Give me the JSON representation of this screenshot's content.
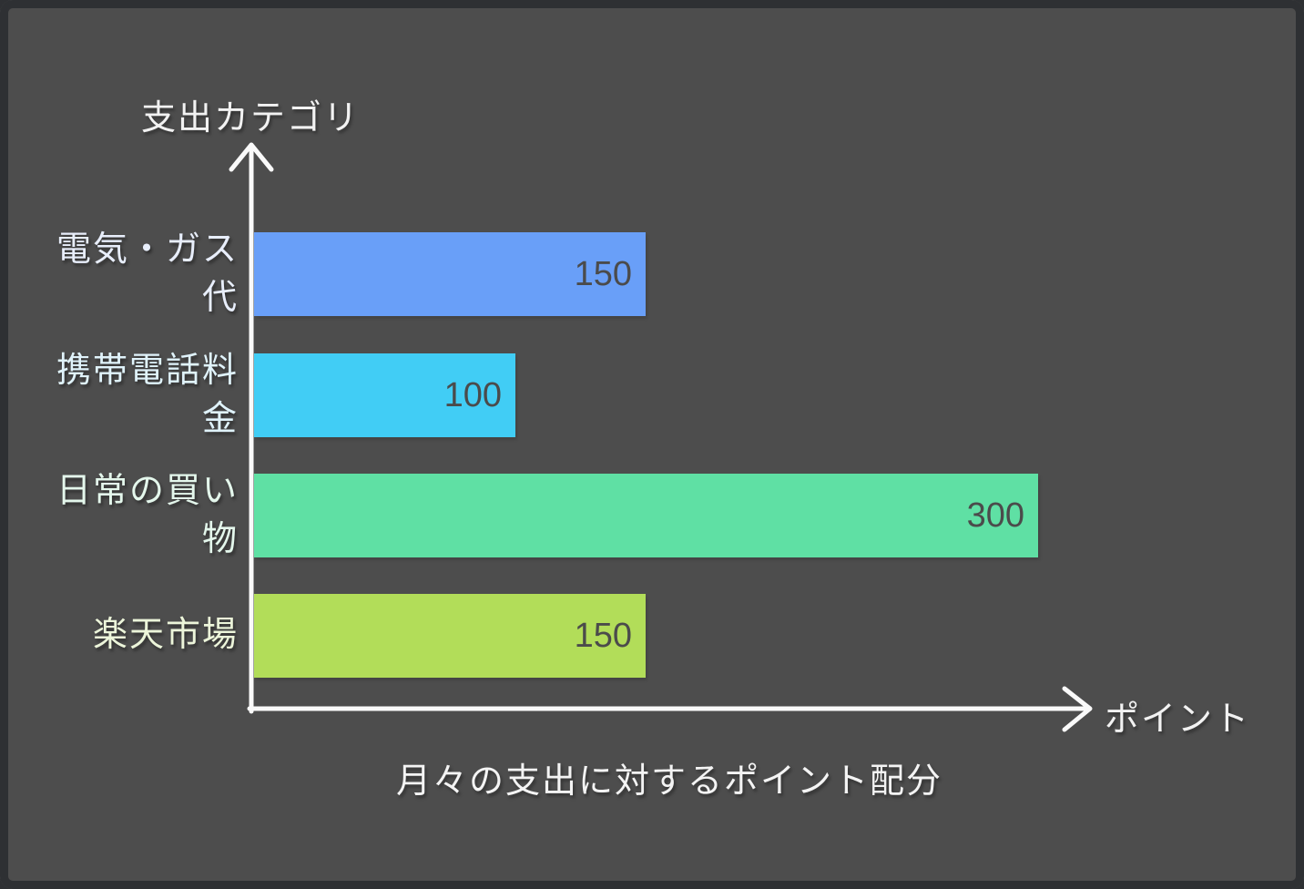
{
  "chart_data": {
    "type": "bar",
    "orientation": "horizontal",
    "title": "月々の支出に対するポイント配分",
    "xlabel": "ポイント",
    "ylabel": "支出カテゴリ",
    "categories": [
      "電気・ガス代",
      "携帯電話料金",
      "日常の買い物",
      "楽天市場"
    ],
    "display_labels": [
      "電気・ガス\n代",
      "携帯電話料\n金",
      "日常の買い\n物",
      "楽天市場"
    ],
    "values": [
      150,
      100,
      300,
      150
    ],
    "xlim": [
      0,
      320
    ],
    "grid": false,
    "legend": false,
    "bar_colors": [
      "#699ff8",
      "#41cdf5",
      "#5fe0a4",
      "#b2dd59"
    ],
    "category_label_colors": [
      "#e8eefb",
      "#e0f3fb",
      "#e4f7ec",
      "#ecf5da"
    ],
    "value_label_color": "#4b4b4b",
    "axis_color": "#fafafa",
    "background_color": "#4d4d4d"
  }
}
